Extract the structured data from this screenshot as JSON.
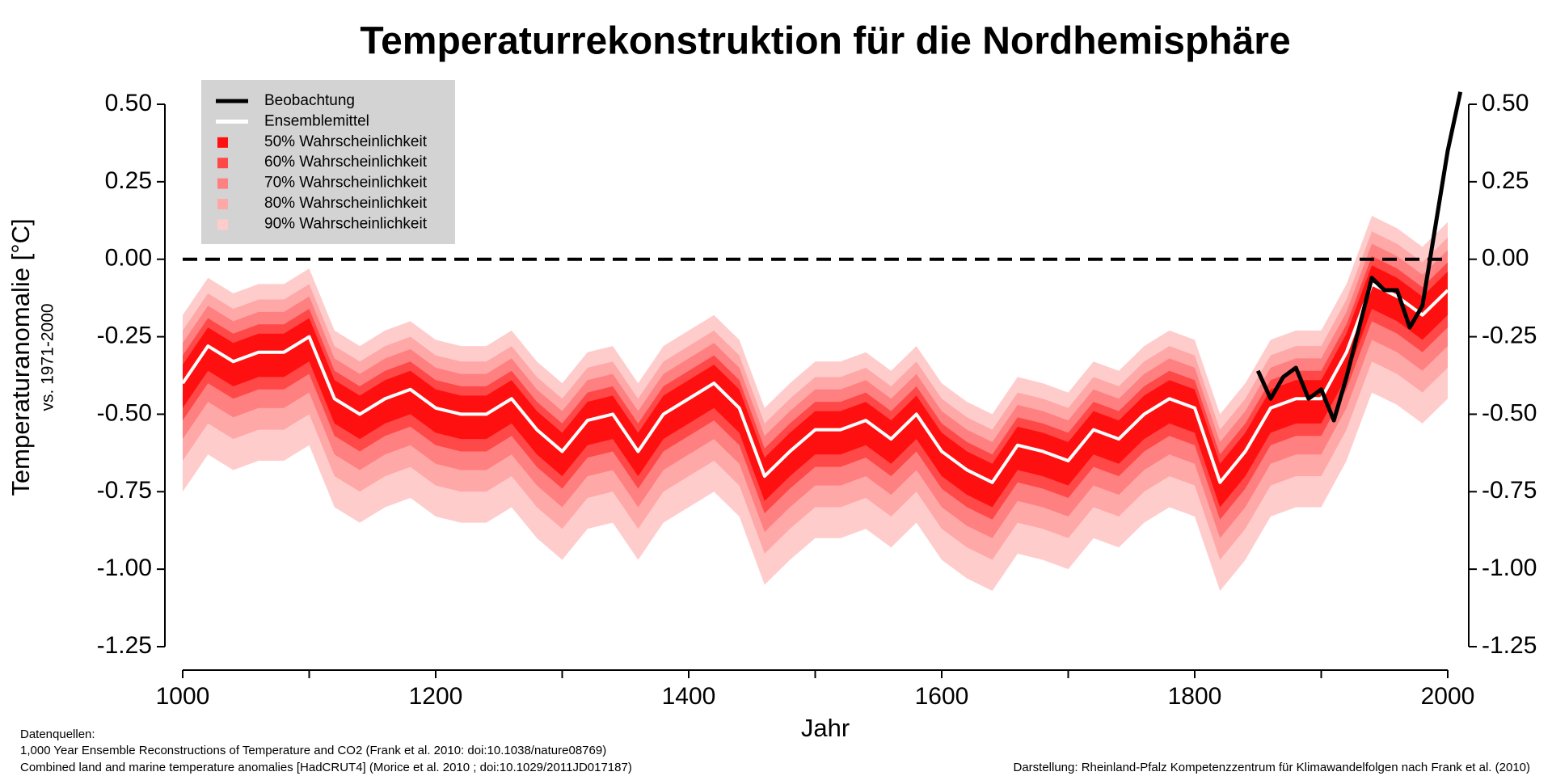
{
  "chart_data": {
    "type": "line",
    "title": "Temperaturrekonstruktion für die Nordhemisphäre",
    "ylabel": "Temperaturanomalie [°C]",
    "ylabel_sub": "vs. 1971-2000",
    "xlabel": "Jahr",
    "footer_left": [
      "Datenquellen:",
      "1,000 Year Ensemble Reconstructions of Temperature and CO2 (Frank et al. 2010: doi:10.1038/nature08769)",
      "Combined land and marine temperature anomalies [HadCRUT4] (Morice et al. 2010 ; doi:10.1029/2011JD017187)"
    ],
    "footer_right": "Darstellung: Rheinland-Pfalz Kompetenzzentrum für Klimawandelfolgen nach Frank et al. (2010)",
    "xlim": [
      1000,
      2000
    ],
    "xticks": [
      1000,
      1200,
      1400,
      1600,
      1800,
      2000
    ],
    "xticks_minor": [
      1100,
      1300,
      1500,
      1700,
      1900
    ],
    "ylim": [
      -1.25,
      0.5
    ],
    "yticks": [
      {
        "value": 0.5,
        "label": "0.50"
      },
      {
        "value": 0.25,
        "label": "0.25"
      },
      {
        "value": 0,
        "label": "0.00"
      },
      {
        "value": -0.25,
        "label": "-0.25"
      },
      {
        "value": -0.5,
        "label": "-0.50"
      },
      {
        "value": -0.75,
        "label": "-0.75"
      },
      {
        "value": -1,
        "label": "-1.00"
      },
      {
        "value": -1.25,
        "label": "-1.25"
      }
    ],
    "reference_line": 0,
    "legend_position": "upper left",
    "x": [
      1000,
      1020,
      1040,
      1060,
      1080,
      1100,
      1120,
      1140,
      1160,
      1180,
      1200,
      1220,
      1240,
      1260,
      1280,
      1300,
      1320,
      1340,
      1360,
      1380,
      1400,
      1420,
      1440,
      1460,
      1480,
      1500,
      1520,
      1540,
      1560,
      1580,
      1600,
      1620,
      1640,
      1660,
      1680,
      1700,
      1720,
      1740,
      1760,
      1780,
      1800,
      1820,
      1840,
      1860,
      1880,
      1900,
      1920,
      1940,
      1960,
      1980,
      2000
    ],
    "bands": [
      {
        "name": "90% Wahrscheinlichkeit",
        "color": "#ffcccc",
        "upper": [
          -0.18,
          -0.06,
          -0.11,
          -0.08,
          -0.08,
          -0.03,
          -0.23,
          -0.28,
          -0.23,
          -0.2,
          -0.26,
          -0.28,
          -0.28,
          -0.23,
          -0.33,
          -0.4,
          -0.3,
          -0.28,
          -0.4,
          -0.28,
          -0.23,
          -0.18,
          -0.26,
          -0.48,
          -0.4,
          -0.33,
          -0.33,
          -0.3,
          -0.36,
          -0.28,
          -0.4,
          -0.46,
          -0.5,
          -0.38,
          -0.4,
          -0.43,
          -0.33,
          -0.36,
          -0.28,
          -0.23,
          -0.26,
          -0.5,
          -0.4,
          -0.26,
          -0.23,
          -0.23,
          -0.08,
          0.14,
          0.1,
          0.04,
          0.12
        ],
        "lower": [
          -0.75,
          -0.63,
          -0.68,
          -0.65,
          -0.65,
          -0.6,
          -0.8,
          -0.85,
          -0.8,
          -0.77,
          -0.83,
          -0.85,
          -0.85,
          -0.8,
          -0.9,
          -0.97,
          -0.87,
          -0.85,
          -0.97,
          -0.85,
          -0.8,
          -0.75,
          -0.83,
          -1.05,
          -0.97,
          -0.9,
          -0.9,
          -0.87,
          -0.93,
          -0.85,
          -0.97,
          -1.03,
          -1.07,
          -0.95,
          -0.97,
          -1.0,
          -0.9,
          -0.93,
          -0.85,
          -0.8,
          -0.83,
          -1.07,
          -0.97,
          -0.83,
          -0.8,
          -0.8,
          -0.65,
          -0.43,
          -0.47,
          -0.53,
          -0.45
        ]
      },
      {
        "name": "80% Wahrscheinlichkeit",
        "color": "#ffa8a8",
        "upper": [
          -0.23,
          -0.11,
          -0.16,
          -0.13,
          -0.13,
          -0.08,
          -0.28,
          -0.33,
          -0.28,
          -0.25,
          -0.31,
          -0.33,
          -0.33,
          -0.28,
          -0.38,
          -0.45,
          -0.35,
          -0.33,
          -0.45,
          -0.33,
          -0.28,
          -0.23,
          -0.31,
          -0.53,
          -0.45,
          -0.38,
          -0.38,
          -0.35,
          -0.41,
          -0.33,
          -0.45,
          -0.51,
          -0.55,
          -0.43,
          -0.45,
          -0.48,
          -0.38,
          -0.41,
          -0.33,
          -0.28,
          -0.31,
          -0.55,
          -0.45,
          -0.31,
          -0.28,
          -0.28,
          -0.13,
          0.09,
          0.05,
          -0.01,
          0.07
        ],
        "lower": [
          -0.65,
          -0.53,
          -0.58,
          -0.55,
          -0.55,
          -0.5,
          -0.7,
          -0.75,
          -0.7,
          -0.67,
          -0.73,
          -0.75,
          -0.75,
          -0.7,
          -0.8,
          -0.87,
          -0.77,
          -0.75,
          -0.87,
          -0.75,
          -0.7,
          -0.65,
          -0.73,
          -0.95,
          -0.87,
          -0.8,
          -0.8,
          -0.77,
          -0.83,
          -0.75,
          -0.87,
          -0.93,
          -0.97,
          -0.85,
          -0.87,
          -0.9,
          -0.8,
          -0.83,
          -0.75,
          -0.7,
          -0.73,
          -0.97,
          -0.87,
          -0.73,
          -0.7,
          -0.7,
          -0.55,
          -0.33,
          -0.37,
          -0.43,
          -0.35
        ]
      },
      {
        "name": "70% Wahrscheinlichkeit",
        "color": "#ff8080",
        "upper": [
          -0.27,
          -0.15,
          -0.2,
          -0.17,
          -0.17,
          -0.12,
          -0.32,
          -0.37,
          -0.32,
          -0.29,
          -0.35,
          -0.37,
          -0.37,
          -0.32,
          -0.42,
          -0.49,
          -0.39,
          -0.37,
          -0.49,
          -0.37,
          -0.32,
          -0.27,
          -0.35,
          -0.57,
          -0.49,
          -0.42,
          -0.42,
          -0.39,
          -0.45,
          -0.37,
          -0.49,
          -0.55,
          -0.59,
          -0.47,
          -0.49,
          -0.52,
          -0.42,
          -0.45,
          -0.37,
          -0.32,
          -0.35,
          -0.59,
          -0.49,
          -0.35,
          -0.32,
          -0.32,
          -0.17,
          0.05,
          0.01,
          -0.05,
          0.03
        ],
        "lower": [
          -0.58,
          -0.46,
          -0.51,
          -0.48,
          -0.48,
          -0.43,
          -0.63,
          -0.68,
          -0.63,
          -0.6,
          -0.66,
          -0.68,
          -0.68,
          -0.63,
          -0.73,
          -0.8,
          -0.7,
          -0.68,
          -0.8,
          -0.68,
          -0.63,
          -0.58,
          -0.66,
          -0.88,
          -0.8,
          -0.73,
          -0.73,
          -0.7,
          -0.76,
          -0.68,
          -0.8,
          -0.86,
          -0.9,
          -0.78,
          -0.8,
          -0.83,
          -0.73,
          -0.76,
          -0.68,
          -0.63,
          -0.66,
          -0.9,
          -0.8,
          -0.66,
          -0.63,
          -0.63,
          -0.48,
          -0.26,
          -0.3,
          -0.36,
          -0.28
        ]
      },
      {
        "name": "60% Wahrscheinlichkeit",
        "color": "#ff4848",
        "upper": [
          -0.31,
          -0.19,
          -0.24,
          -0.21,
          -0.21,
          -0.16,
          -0.36,
          -0.41,
          -0.36,
          -0.33,
          -0.39,
          -0.41,
          -0.41,
          -0.36,
          -0.46,
          -0.53,
          -0.43,
          -0.41,
          -0.53,
          -0.41,
          -0.36,
          -0.31,
          -0.39,
          -0.61,
          -0.53,
          -0.46,
          -0.46,
          -0.43,
          -0.49,
          -0.41,
          -0.53,
          -0.59,
          -0.63,
          -0.51,
          -0.53,
          -0.56,
          -0.46,
          -0.49,
          -0.41,
          -0.36,
          -0.39,
          -0.63,
          -0.53,
          -0.39,
          -0.36,
          -0.36,
          -0.21,
          0.01,
          -0.03,
          -0.09,
          -0.01
        ],
        "lower": [
          -0.52,
          -0.4,
          -0.45,
          -0.42,
          -0.42,
          -0.37,
          -0.57,
          -0.62,
          -0.57,
          -0.54,
          -0.6,
          -0.62,
          -0.62,
          -0.57,
          -0.67,
          -0.74,
          -0.64,
          -0.62,
          -0.74,
          -0.62,
          -0.57,
          -0.52,
          -0.6,
          -0.82,
          -0.74,
          -0.67,
          -0.67,
          -0.64,
          -0.7,
          -0.62,
          -0.74,
          -0.8,
          -0.84,
          -0.72,
          -0.74,
          -0.77,
          -0.67,
          -0.7,
          -0.62,
          -0.57,
          -0.6,
          -0.84,
          -0.74,
          -0.6,
          -0.57,
          -0.57,
          -0.42,
          -0.2,
          -0.24,
          -0.3,
          -0.22
        ]
      },
      {
        "name": "50% Wahrscheinlichkeit",
        "color": "#ff1010",
        "upper": [
          -0.34,
          -0.22,
          -0.27,
          -0.24,
          -0.24,
          -0.19,
          -0.39,
          -0.44,
          -0.39,
          -0.36,
          -0.42,
          -0.44,
          -0.44,
          -0.39,
          -0.49,
          -0.56,
          -0.46,
          -0.44,
          -0.56,
          -0.44,
          -0.39,
          -0.34,
          -0.42,
          -0.64,
          -0.56,
          -0.49,
          -0.49,
          -0.46,
          -0.52,
          -0.44,
          -0.56,
          -0.62,
          -0.66,
          -0.54,
          -0.56,
          -0.59,
          -0.49,
          -0.52,
          -0.44,
          -0.39,
          -0.42,
          -0.66,
          -0.56,
          -0.42,
          -0.39,
          -0.39,
          -0.24,
          -0.02,
          -0.06,
          -0.12,
          -0.04
        ],
        "lower": [
          -0.48,
          -0.36,
          -0.41,
          -0.38,
          -0.38,
          -0.33,
          -0.53,
          -0.58,
          -0.53,
          -0.5,
          -0.56,
          -0.58,
          -0.58,
          -0.53,
          -0.63,
          -0.7,
          -0.6,
          -0.58,
          -0.7,
          -0.58,
          -0.53,
          -0.48,
          -0.56,
          -0.78,
          -0.7,
          -0.63,
          -0.63,
          -0.6,
          -0.66,
          -0.58,
          -0.7,
          -0.76,
          -0.8,
          -0.68,
          -0.7,
          -0.73,
          -0.63,
          -0.66,
          -0.58,
          -0.53,
          -0.56,
          -0.8,
          -0.7,
          -0.56,
          -0.53,
          -0.53,
          -0.38,
          -0.16,
          -0.2,
          -0.26,
          -0.18
        ]
      }
    ],
    "series": [
      {
        "name": "Beobachtung",
        "color": "#000000",
        "x": [
          1850,
          1860,
          1870,
          1880,
          1890,
          1900,
          1910,
          1920,
          1930,
          1940,
          1950,
          1960,
          1970,
          1980,
          1990,
          2000,
          2010
        ],
        "values": [
          -0.36,
          -0.45,
          -0.38,
          -0.35,
          -0.45,
          -0.42,
          -0.52,
          -0.38,
          -0.22,
          -0.06,
          -0.1,
          -0.1,
          -0.22,
          -0.15,
          0.1,
          0.35,
          0.54
        ]
      },
      {
        "name": "Ensemblemittel",
        "color": "#ffffff",
        "values": [
          -0.4,
          -0.28,
          -0.33,
          -0.3,
          -0.3,
          -0.25,
          -0.45,
          -0.5,
          -0.45,
          -0.42,
          -0.48,
          -0.5,
          -0.5,
          -0.45,
          -0.55,
          -0.62,
          -0.52,
          -0.5,
          -0.62,
          -0.5,
          -0.45,
          -0.4,
          -0.48,
          -0.7,
          -0.62,
          -0.55,
          -0.55,
          -0.52,
          -0.58,
          -0.5,
          -0.62,
          -0.68,
          -0.72,
          -0.6,
          -0.62,
          -0.65,
          -0.55,
          -0.58,
          -0.5,
          -0.45,
          -0.48,
          -0.72,
          -0.62,
          -0.48,
          -0.45,
          -0.45,
          -0.3,
          -0.08,
          -0.12,
          -0.18,
          -0.1
        ]
      }
    ]
  }
}
